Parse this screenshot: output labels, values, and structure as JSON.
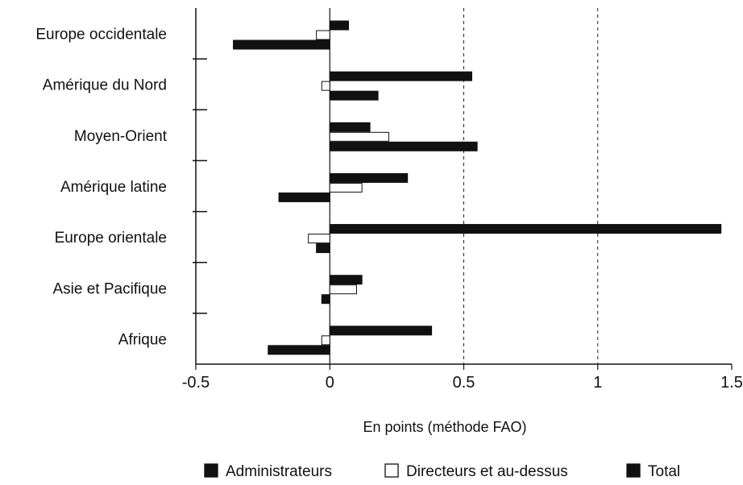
{
  "chart_data": {
    "type": "bar",
    "orientation": "horizontal",
    "title": "",
    "xlabel": "En points (méthode FAO)",
    "ylabel": "",
    "xlim": [
      -0.5,
      1.5
    ],
    "xticks": [
      -0.5,
      0,
      0.5,
      1,
      1.5
    ],
    "xtick_labels": [
      "-0.5",
      "0",
      "0.5",
      "1",
      "1.5"
    ],
    "gridlines_dashed_at": [
      0.5,
      1
    ],
    "legend_position": "bottom",
    "categories": [
      "Europe occidentale",
      "Amérique du Nord",
      "Moyen-Orient",
      "Amérique latine",
      "Europe orientale",
      "Asie et Pacifique",
      "Afrique"
    ],
    "series": [
      {
        "name": "Administrateurs",
        "fill": "#111111",
        "values": [
          0.07,
          0.53,
          0.15,
          0.29,
          1.46,
          0.12,
          0.38
        ]
      },
      {
        "name": "Directeurs et au-dessus",
        "fill": "#ffffff",
        "values": [
          -0.05,
          -0.03,
          0.22,
          0.12,
          -0.08,
          0.1,
          -0.03
        ]
      },
      {
        "name": "Total",
        "fill": "#111111",
        "values": [
          -0.36,
          0.18,
          0.55,
          -0.19,
          -0.05,
          -0.03,
          -0.23
        ]
      }
    ]
  }
}
